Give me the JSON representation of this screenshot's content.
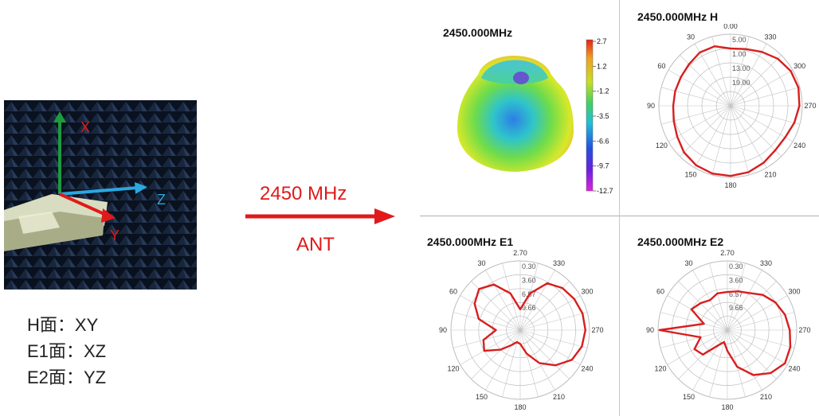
{
  "setup": {
    "axes": {
      "x": "X",
      "y": "Y",
      "z": "Z"
    },
    "planes": [
      {
        "name": "H面",
        "sep": "：",
        "axes": "XY"
      },
      {
        "name": "E1面",
        "sep": "：",
        "axes": "XZ"
      },
      {
        "name": "E2面",
        "sep": "：",
        "axes": "YZ"
      }
    ]
  },
  "arrow": {
    "frequency": "2450 MHz",
    "label": "ANT"
  },
  "colors": {
    "accent": "#e01a1a",
    "trace": "#d81e1e",
    "x_axis": "#1e9a3e",
    "y_axis": "#e01a1a",
    "z_axis": "#2aa8e0"
  },
  "chart_data": [
    {
      "type": "surface-3d",
      "title": "2450.000MHz",
      "colorbar": {
        "ticks": [
          "2.7",
          "1.2",
          "-1.2",
          "-3.5",
          "-6.6",
          "-9.7",
          "-12.7"
        ],
        "range": [
          -12.7,
          2.7
        ]
      }
    },
    {
      "type": "polar",
      "title": "2450.000MHz  H",
      "angle_labels": [
        "0.00",
        "30",
        "60",
        "90",
        "120",
        "150",
        "180",
        "210",
        "240",
        "270",
        "300",
        "330"
      ],
      "radial_labels": [
        "5.00",
        "1.00",
        "13.00",
        "19.00"
      ],
      "angles_deg": [
        0,
        15,
        30,
        45,
        60,
        75,
        90,
        105,
        120,
        135,
        150,
        165,
        180,
        195,
        210,
        225,
        240,
        255,
        270,
        285,
        300,
        315,
        330,
        345
      ],
      "values": [
        0.8,
        0.86,
        0.86,
        0.82,
        0.8,
        0.8,
        0.8,
        0.82,
        0.86,
        0.92,
        0.96,
        0.98,
        0.98,
        0.96,
        0.92,
        0.88,
        0.88,
        0.92,
        0.96,
        0.98,
        0.97,
        0.93,
        0.87,
        0.82
      ]
    },
    {
      "type": "polar",
      "title": "2450.000MHz  E1",
      "angle_labels": [
        "2.70",
        "30",
        "60",
        "90",
        "120",
        "150",
        "180",
        "210",
        "240",
        "270",
        "300",
        "330"
      ],
      "radial_labels": [
        "0.30",
        "3.60",
        "6.57",
        "9.66"
      ],
      "angles_deg": [
        0,
        15,
        30,
        45,
        60,
        75,
        90,
        105,
        120,
        135,
        150,
        165,
        180,
        195,
        210,
        225,
        240,
        255,
        270,
        285,
        300,
        315,
        330,
        345
      ],
      "values": [
        0.3,
        0.55,
        0.76,
        0.84,
        0.76,
        0.62,
        0.35,
        0.55,
        0.6,
        0.4,
        0.25,
        0.18,
        0.2,
        0.35,
        0.55,
        0.72,
        0.86,
        0.92,
        0.94,
        0.93,
        0.9,
        0.86,
        0.78,
        0.55
      ]
    },
    {
      "type": "polar",
      "title": "2450.000MHz  E2",
      "angle_labels": [
        "2.70",
        "30",
        "60",
        "90",
        "120",
        "150",
        "180",
        "210",
        "240",
        "270",
        "300",
        "330"
      ],
      "radial_labels": [
        "0.30",
        "3.60",
        "6.57",
        "9.66"
      ],
      "angles_deg": [
        0,
        15,
        30,
        45,
        60,
        75,
        90,
        105,
        120,
        135,
        150,
        165,
        180,
        195,
        210,
        225,
        240,
        255,
        270,
        285,
        300,
        315,
        330,
        345
      ],
      "values": [
        0.55,
        0.55,
        0.5,
        0.55,
        0.6,
        0.35,
        0.98,
        0.4,
        0.55,
        0.5,
        0.25,
        0.18,
        0.3,
        0.55,
        0.75,
        0.88,
        0.96,
        0.94,
        0.9,
        0.86,
        0.8,
        0.72,
        0.62,
        0.58
      ]
    }
  ]
}
